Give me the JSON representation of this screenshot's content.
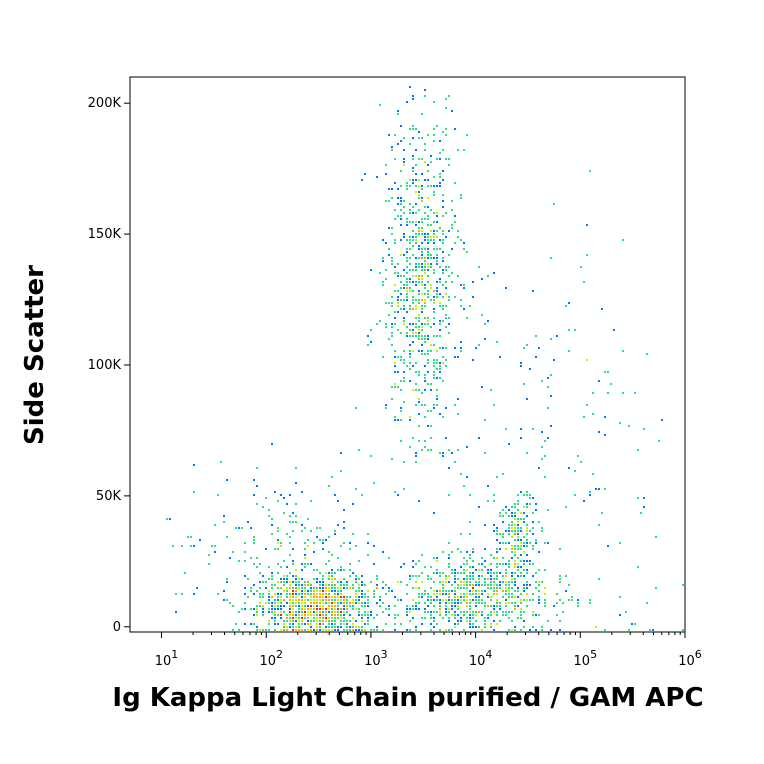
{
  "chart_data": {
    "type": "scatter",
    "title": "",
    "xlabel": "Ig Kappa Light Chain purified / GAM APC",
    "ylabel": "Side Scatter",
    "x_scale": "log",
    "xlim": [
      5,
      1000000
    ],
    "ylim": [
      -2000,
      210000
    ],
    "x_ticks": [
      {
        "value": 10,
        "base": "10",
        "exp": "1"
      },
      {
        "value": 100,
        "base": "10",
        "exp": "2"
      },
      {
        "value": 1000,
        "base": "10",
        "exp": "3"
      },
      {
        "value": 10000,
        "base": "10",
        "exp": "4"
      },
      {
        "value": 100000,
        "base": "10",
        "exp": "5"
      },
      {
        "value": 1000000,
        "base": "10",
        "exp": "6"
      }
    ],
    "y_ticks": [
      {
        "value": 0,
        "label": "0"
      },
      {
        "value": 50000,
        "label": "50K"
      },
      {
        "value": 100000,
        "label": "100K"
      },
      {
        "value": 150000,
        "label": "150K"
      },
      {
        "value": 200000,
        "label": "200K"
      }
    ],
    "grid": false,
    "legend": "none",
    "density_colors": [
      "#0000cc",
      "#0077ff",
      "#00c8e6",
      "#33dd88",
      "#ccee00",
      "#ffaa00",
      "#ff2200"
    ],
    "populations": [
      {
        "x": 300,
        "y": 8000,
        "x_spread_decades": 0.28,
        "y_spread": 6000,
        "weight": 0.32
      },
      {
        "x": 3000,
        "y": 135000,
        "x_spread_decades": 0.18,
        "y_spread": 30000,
        "weight": 0.26
      },
      {
        "x": 10000,
        "y": 12000,
        "x_spread_decades": 0.35,
        "y_spread": 7000,
        "weight": 0.22
      },
      {
        "x": 25000,
        "y": 35000,
        "x_spread_decades": 0.1,
        "y_spread": 9000,
        "weight": 0.06
      },
      {
        "x": 180,
        "y": 25000,
        "x_spread_decades": 0.45,
        "y_spread": 15000,
        "weight": 0.08
      },
      {
        "x": 40000,
        "y": 60000,
        "x_spread_decades": 0.8,
        "y_spread": 45000,
        "weight": 0.06
      }
    ]
  }
}
